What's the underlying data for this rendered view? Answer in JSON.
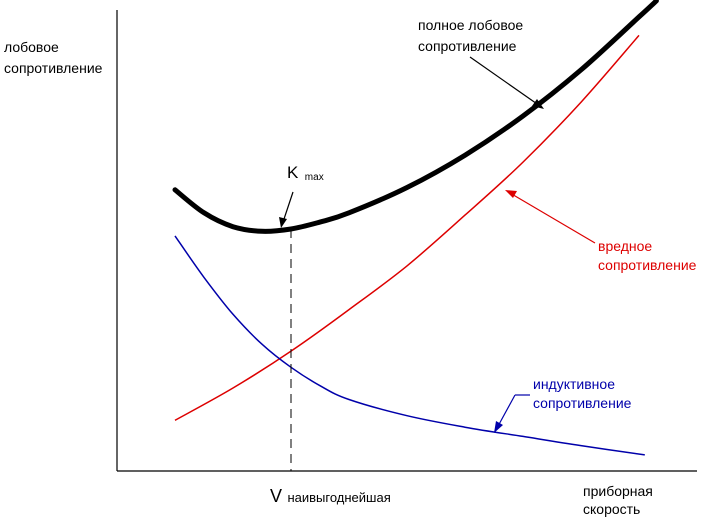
{
  "chart_data": {
    "type": "line",
    "title": "",
    "ylabel": [
      "лобовое",
      "сопротивление"
    ],
    "xlabel": [
      "приборная",
      "скорость"
    ],
    "xlim": [
      0,
      10
    ],
    "ylim": [
      0,
      10
    ],
    "grid": false,
    "ticks": false,
    "series": [
      {
        "name": "полное лобовое сопротивление",
        "label_lines": [
          "полное лобовое",
          "сопротивление"
        ],
        "color": "#000000",
        "x": [
          1.0,
          1.5,
          2.0,
          2.5,
          3.0,
          3.5,
          4.0,
          5.0,
          6.0,
          7.0,
          8.0,
          9.0,
          9.3
        ],
        "y": [
          6.1,
          5.6,
          5.3,
          5.2,
          5.25,
          5.4,
          5.6,
          6.15,
          6.85,
          7.7,
          8.7,
          9.85,
          10.2
        ]
      },
      {
        "name": "вредное сопротивление",
        "label_lines": [
          "вредное",
          "сопротивление"
        ],
        "color": "#dd0000",
        "x": [
          1.0,
          2.0,
          3.0,
          4.0,
          5.0,
          6.0,
          7.0,
          8.0,
          9.0,
          9.0
        ],
        "y": [
          1.1,
          1.8,
          2.6,
          3.5,
          4.45,
          5.55,
          6.7,
          8.0,
          9.45,
          9.45
        ]
      },
      {
        "name": "индуктивное сопротивление",
        "label_lines": [
          "индуктивное",
          "сопротивление"
        ],
        "color": "#0000aa",
        "x": [
          1.0,
          1.5,
          2.0,
          2.5,
          3.0,
          3.5,
          4.0,
          5.0,
          6.0,
          7.0,
          8.0,
          9.1
        ],
        "y": [
          5.1,
          4.2,
          3.4,
          2.75,
          2.25,
          1.85,
          1.55,
          1.2,
          0.95,
          0.75,
          0.55,
          0.35
        ]
      }
    ],
    "annotations": {
      "kmax": {
        "main": "K",
        "sub": "max",
        "x": 3.0,
        "y": 5.25
      },
      "v_best": {
        "main": "V",
        "sub": "наивыгоднейшая",
        "x": 3.0
      }
    }
  }
}
